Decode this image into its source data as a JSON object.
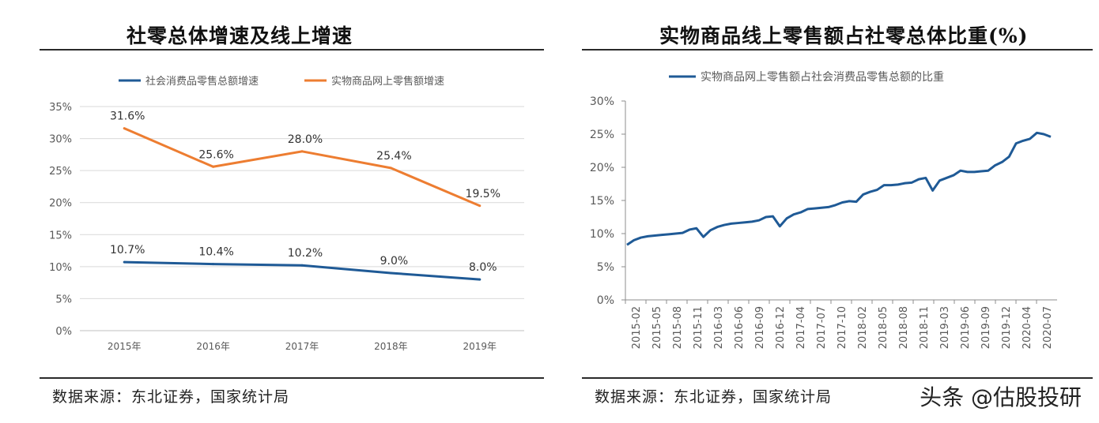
{
  "left": {
    "title": "社零总体增速及线上增速",
    "source": "数据来源：东北证券，国家统计局"
  },
  "right": {
    "title": "实物商品线上零售额占社零总体比重(%)",
    "source": "数据来源：东北证券，国家统计局"
  },
  "watermark": "头条 @估股投研",
  "colors": {
    "blue": "#1f5a96",
    "orange": "#ed7d31",
    "grid": "#d9d9d9",
    "text": "#595959"
  },
  "chart_data": [
    {
      "type": "line",
      "categories": [
        "2015年",
        "2016年",
        "2017年",
        "2018年",
        "2019年"
      ],
      "series": [
        {
          "name": "社会消费品零售总额增速",
          "values": [
            10.7,
            10.4,
            10.2,
            9.0,
            8.0
          ],
          "labels": [
            "10.7%",
            "10.4%",
            "10.2%",
            "9.0%",
            "8.0%"
          ]
        },
        {
          "name": "实物商品网上零售额增速",
          "values": [
            31.6,
            25.6,
            28.0,
            25.4,
            19.5
          ],
          "labels": [
            "31.6%",
            "25.6%",
            "28.0%",
            "25.4%",
            "19.5%"
          ]
        }
      ],
      "yticks": [
        "0%",
        "5%",
        "10%",
        "15%",
        "20%",
        "25%",
        "30%",
        "35%"
      ],
      "ylim": [
        0,
        35
      ],
      "grid": true,
      "legend": "top"
    },
    {
      "type": "line",
      "series": [
        {
          "name": "实物商品网上零售额占社会消费品零售总额的比重",
          "values": [
            8.3,
            9.0,
            9.4,
            9.6,
            9.7,
            9.8,
            9.9,
            10.0,
            10.1,
            10.6,
            10.8,
            9.5,
            10.5,
            11.0,
            11.3,
            11.5,
            11.6,
            11.7,
            11.8,
            12.0,
            12.5,
            12.6,
            11.1,
            12.3,
            12.9,
            13.2,
            13.7,
            13.8,
            13.9,
            14.0,
            14.3,
            14.7,
            14.9,
            14.8,
            15.9,
            16.3,
            16.6,
            17.3,
            17.3,
            17.4,
            17.6,
            17.7,
            18.2,
            18.4,
            16.5,
            18.0,
            18.4,
            18.8,
            19.5,
            19.3,
            19.3,
            19.4,
            19.5,
            20.3,
            20.8,
            21.6,
            23.6,
            24.0,
            24.3,
            25.2,
            25.0,
            24.6
          ]
        }
      ],
      "xticks": [
        "2015-02",
        "2015-05",
        "2015-08",
        "2015-11",
        "2016-03",
        "2016-06",
        "2016-09",
        "2016-12",
        "2017-04",
        "2017-07",
        "2017-10",
        "2018-02",
        "2018-05",
        "2018-08",
        "2018-11",
        "2019-03",
        "2019-06",
        "2019-09",
        "2019-12",
        "2020-04",
        "2020-07"
      ],
      "yticks": [
        "0%",
        "5%",
        "10%",
        "15%",
        "20%",
        "25%",
        "30%"
      ],
      "ylim": [
        0,
        30
      ],
      "grid": false,
      "legend": "top"
    }
  ]
}
